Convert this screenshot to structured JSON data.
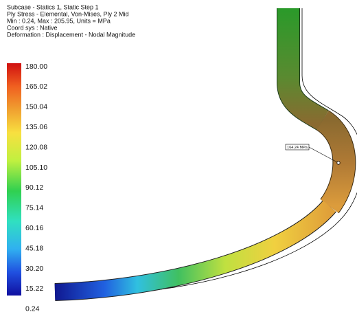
{
  "header": {
    "lines": [
      "Subcase - Statics 1, Static Step 1",
      "Ply Stress - Elemental, Von-Mises, Ply 2 Mid",
      "Min : 0.24, Max : 205.95, Units = MPa",
      "Coord sys : Native",
      "Deformation : Displacement - Nodal Magnitude"
    ]
  },
  "legend": {
    "labels": [
      "180.00",
      "165.02",
      "150.04",
      "135.06",
      "120.08",
      "105.10",
      "90.12",
      "75.14",
      "60.16",
      "45.18",
      "30.20",
      "15.22",
      "0.24"
    ]
  },
  "probe": {
    "label": "164.24 MPa"
  }
}
